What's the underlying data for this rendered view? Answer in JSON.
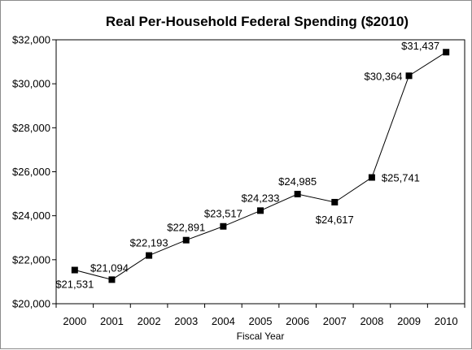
{
  "chart_data": {
    "type": "line",
    "title": "Real Per-Household Federal Spending ($2010)",
    "xlabel": "Fiscal Year",
    "ylabel": "",
    "ylim": [
      20000,
      32000
    ],
    "yticks": [
      20000,
      22000,
      24000,
      26000,
      28000,
      30000,
      32000
    ],
    "ytick_labels": [
      "$20,000",
      "$22,000",
      "$24,000",
      "$26,000",
      "$28,000",
      "$30,000",
      "$32,000"
    ],
    "grid": false,
    "legend": "none",
    "line_color": "#000000",
    "marker": "square",
    "x": [
      "2000",
      "2001",
      "2002",
      "2003",
      "2004",
      "2005",
      "2006",
      "2007",
      "2008",
      "2009",
      "2010"
    ],
    "values": [
      21531,
      21094,
      22193,
      22891,
      23517,
      24233,
      24985,
      24617,
      25741,
      30364,
      31437
    ],
    "data_labels": [
      "$21,531",
      "$21,094",
      "$22,193",
      "$22,891",
      "$23,517",
      "$24,233",
      "$24,985",
      "$24,617",
      "$25,741",
      "$30,364",
      "$31,437"
    ]
  }
}
